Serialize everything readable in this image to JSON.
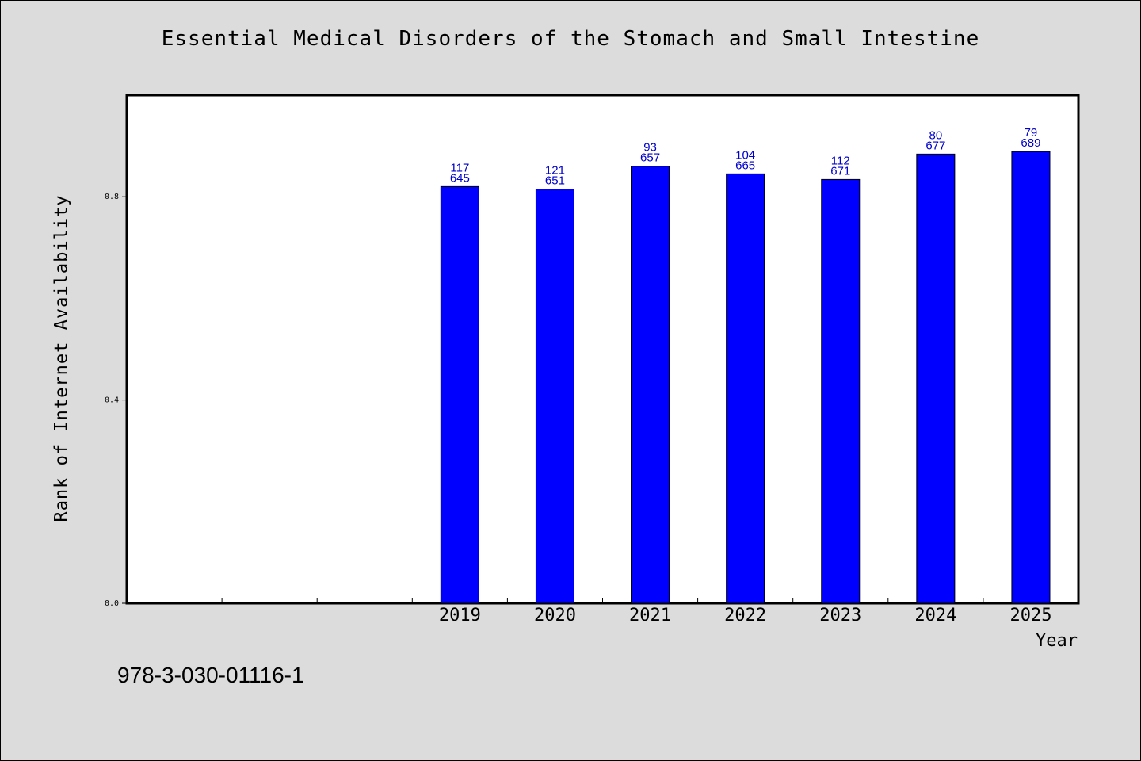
{
  "chart_data": {
    "type": "bar",
    "title": "Essential Medical Disorders of the Stomach and Small Intestine",
    "xlabel": "Year",
    "ylabel": "Rank of Internet Availability",
    "categories": [
      "",
      "",
      "",
      "2019",
      "2020",
      "2021",
      "2022",
      "2023",
      "2024",
      "2025"
    ],
    "values": [
      null,
      null,
      null,
      0.82,
      0.815,
      0.86,
      0.845,
      0.834,
      0.884,
      0.889
    ],
    "bar_labels_top": [
      "",
      "",
      "",
      "117",
      "121",
      "93",
      "104",
      "112",
      "80",
      "79"
    ],
    "bar_labels_bottom": [
      "",
      "",
      "",
      "645",
      "651",
      "657",
      "665",
      "671",
      "677",
      "689"
    ],
    "ylim": [
      0,
      1.0
    ],
    "yticks": [
      "0.0",
      "0.4",
      "0.8"
    ],
    "ytick_values": [
      0,
      0.4,
      0.8
    ],
    "grid": false,
    "bar_color": "#0000ff",
    "label_color": "#0000cc"
  },
  "footer": {
    "isbn": "978-3-030-01116-1"
  }
}
